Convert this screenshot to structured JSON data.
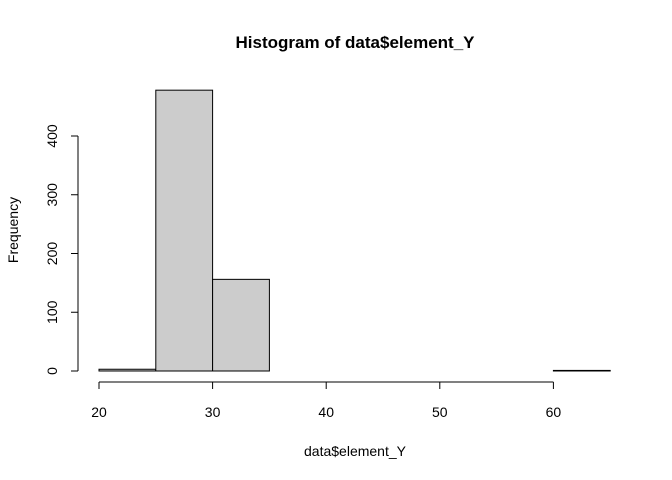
{
  "chart_data": {
    "type": "bar",
    "title": "Histogram of data$element_Y",
    "xlabel": "data$element_Y",
    "ylabel": "Frequency",
    "bins": [
      {
        "from": 20,
        "to": 25,
        "count": 3
      },
      {
        "from": 25,
        "to": 30,
        "count": 478
      },
      {
        "from": 30,
        "to": 35,
        "count": 156
      },
      {
        "from": 35,
        "to": 40,
        "count": 0
      },
      {
        "from": 40,
        "to": 45,
        "count": 0
      },
      {
        "from": 45,
        "to": 50,
        "count": 0
      },
      {
        "from": 50,
        "to": 55,
        "count": 0
      },
      {
        "from": 55,
        "to": 60,
        "count": 0
      },
      {
        "from": 60,
        "to": 65,
        "count": 1
      }
    ],
    "xticks": [
      20,
      30,
      40,
      50,
      60
    ],
    "yticks": [
      0,
      100,
      200,
      300,
      400
    ],
    "xlim": [
      20,
      65
    ],
    "ylim": [
      0,
      478
    ],
    "bar_color": "#CCCCCC",
    "edge_color": "#000000",
    "grid": false,
    "legend": false
  }
}
